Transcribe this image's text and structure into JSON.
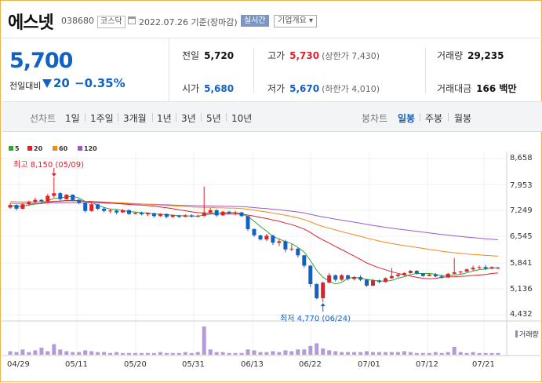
{
  "header": {
    "name": "에스넷",
    "code": "038680",
    "market": "코스닥",
    "date": "2022.07.26 기준(장마감)",
    "realtime_label": "실시간",
    "company_info_label": "기업개요 ▾"
  },
  "quote": {
    "price": "5,700",
    "change_label": "전일대비",
    "change": "20",
    "change_pct": "−0.35%"
  },
  "stats": {
    "prev_close": {
      "label": "전일",
      "value": "5,720"
    },
    "high": {
      "label": "고가",
      "value": "5,730",
      "sub": "(상한가 7,430)"
    },
    "volume": {
      "label": "거래량",
      "value": "29,235"
    },
    "open": {
      "label": "시가",
      "value": "5,680"
    },
    "low": {
      "label": "저가",
      "value": "5,670",
      "sub": "(하한가 4,010)"
    },
    "amount": {
      "label": "거래대금",
      "value": "166 백만"
    }
  },
  "tabs": {
    "line_chart": "선차트",
    "periods": [
      "1일",
      "1주일",
      "3개월",
      "1년",
      "3년",
      "5년",
      "10년"
    ],
    "candle_chart": "봉차트",
    "candle_periods": [
      "일봉",
      "주봉",
      "월봉"
    ],
    "active_candle_period": "일봉"
  },
  "chart_data": {
    "type": "candlestick",
    "legend": [
      {
        "name": "5",
        "color": "#2ea82e"
      },
      {
        "name": "20",
        "color": "#e0202a"
      },
      {
        "name": "60",
        "color": "#f08a1c"
      },
      {
        "name": "120",
        "color": "#9b59d0"
      }
    ],
    "y_ticks": [
      "8,658",
      "7,953",
      "7,249",
      "6,545",
      "5,841",
      "5,136",
      "4,432"
    ],
    "ylim": [
      4432,
      8658
    ],
    "x_ticks": [
      "04/29",
      "05/11",
      "05/20",
      "05/31",
      "06/13",
      "06/22",
      "07/01",
      "07/12",
      "07/21"
    ],
    "annotations": {
      "high": "최고 8,150 (05/09)",
      "low": "최저 4,770 (06/24)"
    },
    "volume_label": "거래량",
    "candles": [
      [
        7330,
        7450,
        7300,
        7400
      ],
      [
        7400,
        7420,
        7250,
        7300
      ],
      [
        7300,
        7460,
        7280,
        7420
      ],
      [
        7420,
        7520,
        7380,
        7480
      ],
      [
        7480,
        7600,
        7450,
        7540
      ],
      [
        7540,
        7560,
        7450,
        7500
      ],
      [
        7500,
        7700,
        7480,
        7650
      ],
      [
        7650,
        8150,
        7600,
        7720
      ],
      [
        7720,
        7750,
        7500,
        7560
      ],
      [
        7560,
        7700,
        7550,
        7680
      ],
      [
        7680,
        7690,
        7500,
        7540
      ],
      [
        7540,
        7560,
        7420,
        7460
      ],
      [
        7460,
        7500,
        7200,
        7240
      ],
      [
        7240,
        7460,
        7220,
        7420
      ],
      [
        7420,
        7430,
        7260,
        7300
      ],
      [
        7300,
        7350,
        7200,
        7240
      ],
      [
        7240,
        7300,
        7180,
        7250
      ],
      [
        7250,
        7270,
        7150,
        7200
      ],
      [
        7200,
        7290,
        7190,
        7260
      ],
      [
        7260,
        7280,
        7130,
        7160
      ],
      [
        7160,
        7200,
        7150,
        7190
      ],
      [
        7190,
        7220,
        7120,
        7150
      ],
      [
        7150,
        7200,
        7100,
        7180
      ],
      [
        7180,
        7190,
        7060,
        7100
      ],
      [
        7100,
        7180,
        7080,
        7160
      ],
      [
        7160,
        7170,
        7040,
        7080
      ],
      [
        7080,
        7130,
        7050,
        7120
      ],
      [
        7120,
        7130,
        7050,
        7080
      ],
      [
        7080,
        7150,
        7070,
        7120
      ],
      [
        7120,
        7150,
        7060,
        7090
      ],
      [
        7090,
        7140,
        7060,
        7110
      ],
      [
        7110,
        7900,
        7080,
        7200
      ],
      [
        7200,
        7320,
        7150,
        7260
      ],
      [
        7260,
        7280,
        7080,
        7120
      ],
      [
        7120,
        7240,
        7110,
        7220
      ],
      [
        7220,
        7240,
        7140,
        7180
      ],
      [
        7180,
        7240,
        7120,
        7200
      ],
      [
        7200,
        7220,
        7080,
        7100
      ],
      [
        7100,
        7110,
        6700,
        6750
      ],
      [
        6750,
        6760,
        6540,
        6580
      ],
      [
        6580,
        6600,
        6440,
        6470
      ],
      [
        6470,
        6620,
        6430,
        6570
      ],
      [
        6570,
        6600,
        6320,
        6380
      ],
      [
        6380,
        6480,
        6290,
        6420
      ],
      [
        6420,
        6460,
        6120,
        6200
      ],
      [
        6200,
        6340,
        6150,
        6220
      ],
      [
        6220,
        6240,
        5980,
        6040
      ],
      [
        6040,
        6050,
        5700,
        5760
      ],
      [
        5760,
        5780,
        5180,
        5260
      ],
      [
        5260,
        5280,
        4850,
        4880
      ],
      [
        4880,
        5330,
        4770,
        5300
      ],
      [
        5300,
        5560,
        5280,
        5500
      ],
      [
        5500,
        5520,
        5330,
        5380
      ],
      [
        5380,
        5530,
        5350,
        5500
      ],
      [
        5500,
        5510,
        5360,
        5400
      ],
      [
        5400,
        5480,
        5360,
        5450
      ],
      [
        5450,
        5500,
        5340,
        5380
      ],
      [
        5380,
        5400,
        5180,
        5220
      ],
      [
        5220,
        5400,
        5200,
        5360
      ],
      [
        5360,
        5380,
        5280,
        5320
      ],
      [
        5320,
        5440,
        5300,
        5420
      ],
      [
        5420,
        5700,
        5400,
        5480
      ],
      [
        5480,
        5540,
        5440,
        5520
      ],
      [
        5520,
        5580,
        5480,
        5560
      ],
      [
        5560,
        5640,
        5540,
        5620
      ],
      [
        5620,
        5640,
        5520,
        5550
      ],
      [
        5550,
        5560,
        5460,
        5480
      ],
      [
        5480,
        5540,
        5470,
        5520
      ],
      [
        5520,
        5560,
        5440,
        5470
      ],
      [
        5470,
        5520,
        5400,
        5440
      ],
      [
        5440,
        5560,
        5420,
        5540
      ],
      [
        5540,
        5970,
        5520,
        5580
      ],
      [
        5580,
        5620,
        5520,
        5600
      ],
      [
        5600,
        5680,
        5580,
        5660
      ],
      [
        5660,
        5760,
        5620,
        5700
      ],
      [
        5700,
        5760,
        5660,
        5720
      ],
      [
        5720,
        5780,
        5640,
        5680
      ],
      [
        5680,
        5740,
        5660,
        5720
      ],
      [
        5680,
        5730,
        5670,
        5700
      ]
    ],
    "volume": [
      4,
      3,
      6,
      3,
      5,
      8,
      4,
      12,
      6,
      4,
      3,
      3,
      5,
      4,
      3,
      3,
      2,
      3,
      2,
      2,
      2,
      2,
      2,
      2,
      3,
      2,
      2,
      2,
      3,
      2,
      3,
      32,
      6,
      3,
      3,
      2,
      2,
      2,
      6,
      5,
      3,
      3,
      4,
      3,
      5,
      4,
      6,
      6,
      10,
      13,
      7,
      5,
      4,
      3,
      3,
      3,
      3,
      4,
      3,
      3,
      3,
      3,
      3,
      4,
      3,
      2,
      2,
      2,
      3,
      2,
      3,
      9,
      3,
      2,
      3,
      2,
      2,
      2,
      2
    ]
  }
}
